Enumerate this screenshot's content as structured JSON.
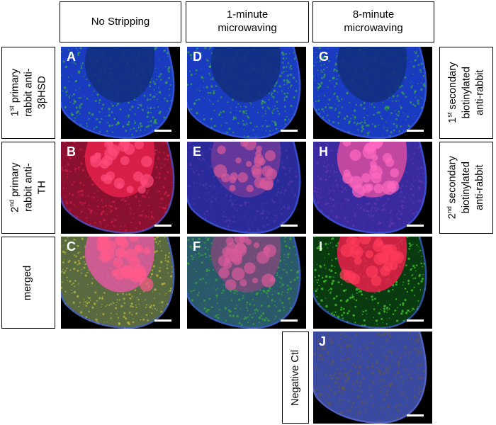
{
  "columns": [
    {
      "id": "no-stripping",
      "line1": "No Stripping",
      "line2": ""
    },
    {
      "id": "1-minute",
      "line1": "1-minute",
      "line2": "microwaving"
    },
    {
      "id": "8-minute",
      "line1": "8-minute",
      "line2": "microwaving"
    }
  ],
  "rows_left": {
    "row1": {
      "sup": "st",
      "pre": "1",
      "line1": " primary",
      "line2": "rabbit anti-",
      "line3": "3βHSD"
    },
    "row2": {
      "sup": "nd",
      "pre": "2",
      "line1": " primary",
      "line2": "rabbit anti-",
      "line3": "TH"
    },
    "row3": {
      "text": "merged"
    }
  },
  "rows_right": {
    "row1": {
      "pre": "1",
      "sup": "st",
      "line1": " secondary",
      "line2": "biotinylated",
      "line3": "anti-rabbit"
    },
    "row2": {
      "pre": "2",
      "sup": "nd",
      "line1": " secondary",
      "line2": "biotinylated",
      "line3": "anti-rabbit"
    }
  },
  "negative_ctl": "Negative Ctl",
  "panels": [
    "A",
    "B",
    "C",
    "D",
    "E",
    "F",
    "G",
    "H",
    "I",
    "J"
  ],
  "colors": {
    "blue": "#1a3bbf",
    "green": "#3fbf2a",
    "red": "#e0204a",
    "yellow": "#d8d23a",
    "magenta": "#d85a9a",
    "brown": "#6a5a3a"
  }
}
